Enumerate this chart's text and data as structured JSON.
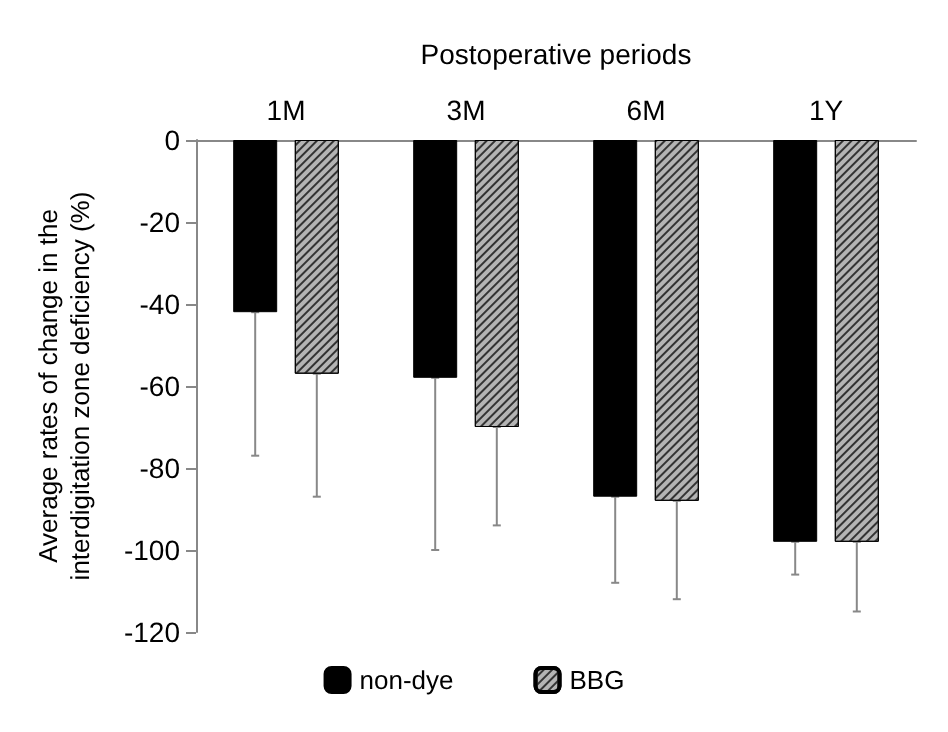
{
  "chart_data": {
    "type": "bar",
    "xlabel": "Postoperative periods",
    "ylabel": "Average rates of change in the interdigitation zone deficiency (%)",
    "categories": [
      "1M",
      "3M",
      "6M",
      "1Y"
    ],
    "series": [
      {
        "name": "non-dye",
        "color": "#000000",
        "values": [
          -42,
          -58,
          -87,
          -98
        ],
        "errors": [
          [
            -77,
            -42
          ],
          [
            -100,
            -58
          ],
          [
            -108,
            -87
          ],
          [
            -106,
            -98
          ]
        ]
      },
      {
        "name": "BBG",
        "color": "#b4b4b4",
        "values": [
          -57,
          -70,
          -88,
          -98
        ],
        "errors": [
          [
            -87,
            -57
          ],
          [
            -94,
            -70
          ],
          [
            -112,
            -88
          ],
          [
            -115,
            -98
          ]
        ]
      }
    ],
    "ylim": [
      -120,
      0
    ],
    "yticks": [
      -120,
      -100,
      -80,
      -60,
      -40,
      -20,
      0
    ],
    "grid": false,
    "legend": "bottom"
  }
}
